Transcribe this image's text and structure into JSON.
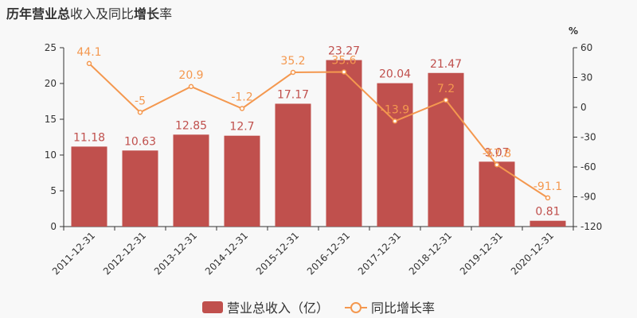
{
  "title": {
    "part1_bold": "历年",
    "part2": "营业总",
    "part3": "收入及同比",
    "part4_bold": "增长",
    "part5": "率"
  },
  "legend": {
    "bar_label": "营业总收入（亿）",
    "line_label": "同比增长率"
  },
  "chart_data": {
    "type": "bar",
    "title": "",
    "categories": [
      "2011-12-31",
      "2012-12-31",
      "2013-12-31",
      "2014-12-31",
      "2015-12-31",
      "2016-12-31",
      "2017-12-31",
      "2018-12-31",
      "2019-12-31",
      "2020-12-31"
    ],
    "series": [
      {
        "name": "营业总收入（亿）",
        "type": "bar",
        "axis": "left",
        "values": [
          11.18,
          10.63,
          12.85,
          12.7,
          17.17,
          23.27,
          20.04,
          21.47,
          9.07,
          0.81
        ],
        "labels": [
          "11.18",
          "10.63",
          "12.85",
          "12.7",
          "17.17",
          "23.27",
          "20.04",
          "21.47",
          "9.07",
          "0.81"
        ]
      },
      {
        "name": "同比增长率",
        "type": "line",
        "axis": "right",
        "values": [
          44.1,
          -5,
          20.9,
          -1.2,
          35.2,
          35.6,
          -13.9,
          7.2,
          -57.8,
          -91.1
        ],
        "labels": [
          "44.1",
          "-5",
          "20.9",
          "-1.2",
          "35.2",
          "35.6",
          "-13.9",
          "7.2",
          "-57.8",
          "-91.1"
        ]
      }
    ],
    "y_left": {
      "range": [
        0,
        25
      ],
      "ticks": [
        "0",
        "5",
        "10",
        "15",
        "20",
        "25"
      ]
    },
    "y_right": {
      "range": [
        -120,
        60
      ],
      "ticks": [
        "-120",
        "-90",
        "-60",
        "-30",
        "0",
        "30",
        "60"
      ],
      "unit_label": "%"
    },
    "colors": {
      "bar": "#c0504d",
      "line": "#f4984f",
      "bar_label": "#c0504d",
      "line_label": "#f4984f"
    },
    "grid": false,
    "legend_position": "bottom"
  }
}
